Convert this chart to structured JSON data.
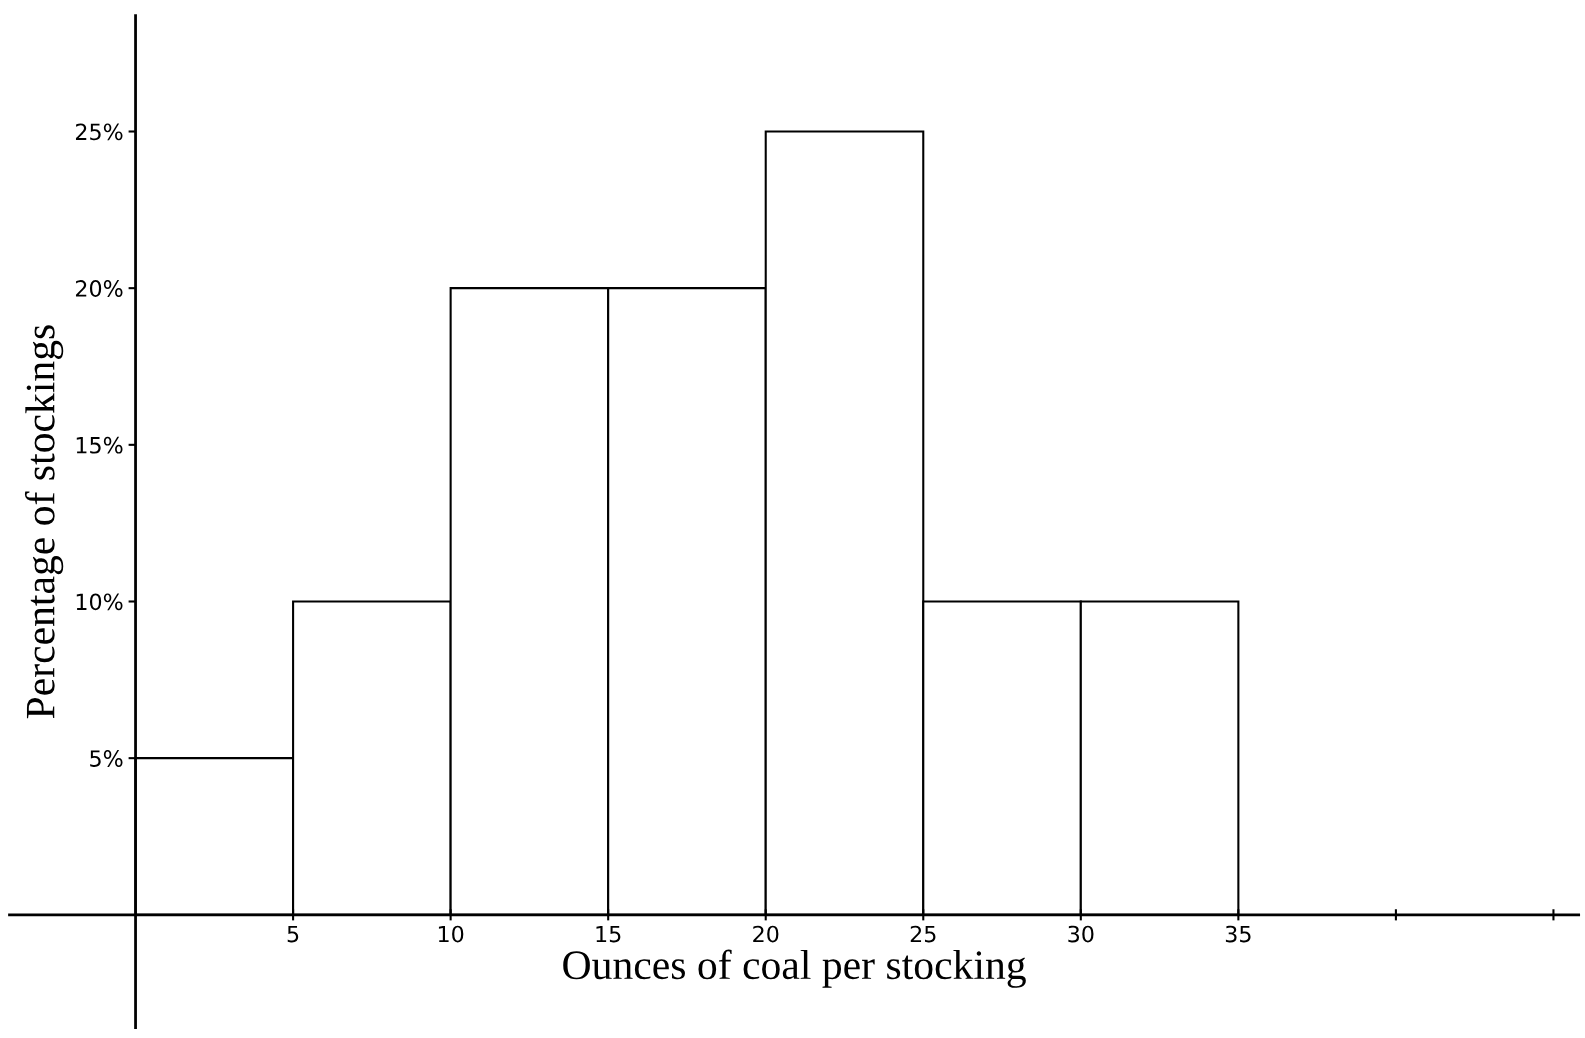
{
  "chart_data": {
    "type": "histogram",
    "xlabel": "Ounces of coal per stocking",
    "ylabel": "Percentage of stockings",
    "bins": [
      0,
      5,
      10,
      15,
      20,
      25,
      30,
      35
    ],
    "values": [
      5,
      10,
      20,
      20,
      25,
      10,
      10
    ],
    "color": "#ffffff",
    "xlim": [
      -4,
      45.8
    ],
    "ylim": [
      -3.6,
      28.7
    ],
    "xticks": [
      5,
      10,
      15,
      20,
      25,
      30,
      35,
      {
        "value": 40,
        "label": null
      },
      {
        "value": 45,
        "label": null
      }
    ],
    "yticks": [
      {
        "value": 5,
        "label": "5%"
      },
      {
        "value": 10,
        "label": "10%"
      },
      {
        "value": 15,
        "label": "15%"
      },
      {
        "value": 20,
        "label": "20%"
      },
      {
        "value": 25,
        "label": "25%"
      }
    ],
    "grid": false,
    "legend": false
  }
}
